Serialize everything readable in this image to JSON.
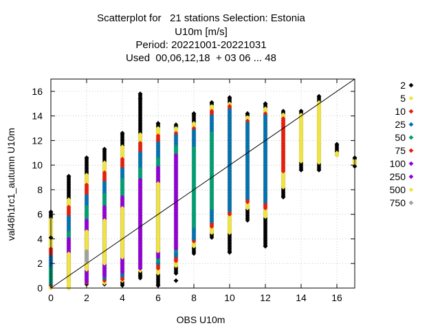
{
  "title_lines": [
    "Scatterplot for   21 stations Selection: Estonia",
    "U10m [m/s]",
    "Period: 20221001-20221031",
    "Used  00,06,12,18  + 03 06 ... 48"
  ],
  "chart_data": {
    "type": "scatter",
    "xlabel": "OBS U10m",
    "ylabel": "val46h1rc1_autumn U10m",
    "xlim": [
      0,
      17
    ],
    "ylim": [
      0,
      17
    ],
    "xticks": [
      0,
      2,
      4,
      6,
      8,
      10,
      12,
      14,
      16
    ],
    "yticks": [
      0,
      2,
      4,
      6,
      8,
      10,
      12,
      14,
      16
    ],
    "diagonal_line": true,
    "grid": true,
    "legend_position": "right",
    "legend": [
      {
        "label": "2",
        "color": "#000000"
      },
      {
        "label": "5",
        "color": "#f0e442"
      },
      {
        "label": "10",
        "color": "#e51e10"
      },
      {
        "label": "25",
        "color": "#0072b2"
      },
      {
        "label": "50",
        "color": "#009e73"
      },
      {
        "label": "75",
        "color": "#e51e10"
      },
      {
        "label": "100",
        "color": "#9400d3"
      },
      {
        "label": "250",
        "color": "#9400d3"
      },
      {
        "label": "500",
        "color": "#f0e442"
      },
      {
        "label": "750",
        "color": "#a0a0a0"
      }
    ],
    "columns": [
      {
        "x": 0,
        "bands": [
          [
            "#000000",
            0,
            6.2
          ],
          [
            "#f0e442",
            0,
            5.6
          ],
          [
            "#e51e10",
            0.2,
            3.2
          ],
          [
            "#0072b2",
            0.3,
            2.6
          ],
          [
            "#009e73",
            0.4,
            1.6
          ]
        ]
      },
      {
        "x": 1,
        "bands": [
          [
            "#000000",
            0,
            9.1
          ],
          [
            "#f0e442",
            0,
            7.2
          ],
          [
            "#e51e10",
            0.5,
            6.6
          ],
          [
            "#0072b2",
            0.5,
            5.8
          ],
          [
            "#009e73",
            0.8,
            4.5
          ],
          [
            "#9400d3",
            1.0,
            4.0
          ],
          [
            "#f0e442",
            0.3,
            2.8
          ]
        ]
      },
      {
        "x": 2,
        "bands": [
          [
            "#000000",
            0.3,
            10.6
          ],
          [
            "#f0e442",
            0.4,
            9.2
          ],
          [
            "#e51e10",
            0.4,
            8.4
          ],
          [
            "#0072b2",
            0.5,
            7.5
          ],
          [
            "#009e73",
            0.6,
            6.6
          ],
          [
            "#9400d3",
            0.5,
            5.5
          ],
          [
            "#f0e442",
            1.5,
            4.6
          ],
          [
            "#a0a0a0",
            2.2,
            3.0
          ]
        ]
      },
      {
        "x": 3,
        "bands": [
          [
            "#000000",
            0.3,
            11.3
          ],
          [
            "#f0e442",
            0.4,
            10.2
          ],
          [
            "#e51e10",
            0.6,
            9.4
          ],
          [
            "#0072b2",
            0.8,
            8.6
          ],
          [
            "#009e73",
            1.0,
            7.6
          ],
          [
            "#9400d3",
            1.0,
            6.6
          ],
          [
            "#f0e442",
            2.0,
            5.5
          ]
        ]
      },
      {
        "x": 4,
        "bands": [
          [
            "#000000",
            0.2,
            12.6
          ],
          [
            "#f0e442",
            0.6,
            11.5
          ],
          [
            "#e51e10",
            0.7,
            10.5
          ],
          [
            "#0072b2",
            1.0,
            9.7
          ],
          [
            "#009e73",
            1.3,
            8.8
          ],
          [
            "#9400d3",
            1.3,
            7.4
          ],
          [
            "#f0e442",
            2.5,
            6.5
          ]
        ]
      },
      {
        "x": 5,
        "bands": [
          [
            "#000000",
            0.8,
            15.8
          ],
          [
            "#f0e442",
            1.4,
            12.5
          ],
          [
            "#e51e10",
            1.6,
            11.8
          ],
          [
            "#0072b2",
            1.6,
            11.0
          ],
          [
            "#009e73",
            1.8,
            9.7
          ],
          [
            "#9400d3",
            1.6,
            8.8
          ]
        ]
      },
      {
        "x": 6,
        "bands": [
          [
            "#000000",
            0.2,
            13.4
          ],
          [
            "#f0e442",
            1.2,
            13.0
          ],
          [
            "#e51e10",
            1.6,
            12.4
          ],
          [
            "#0072b2",
            2.0,
            11.8
          ],
          [
            "#009e73",
            2.2,
            10.5
          ],
          [
            "#9400d3",
            2.5,
            9.8
          ],
          [
            "#f0e442",
            3.0,
            8.5
          ]
        ]
      },
      {
        "x": 7,
        "bands": [
          [
            "#000000",
            1.2,
            13.3
          ],
          [
            "#f0e442",
            1.8,
            13.0
          ],
          [
            "#e51e10",
            2.2,
            12.6
          ],
          [
            "#0072b2",
            2.6,
            12.4
          ],
          [
            "#009e73",
            3.0,
            11.5
          ],
          [
            "#9400d3",
            3.2,
            10.8
          ]
        ]
      },
      {
        "x": 8,
        "bands": [
          [
            "#000000",
            2.8,
            14.2
          ],
          [
            "#f0e442",
            3.4,
            13.4
          ],
          [
            "#e51e10",
            3.8,
            13.0
          ],
          [
            "#0072b2",
            4.0,
            12.8
          ],
          [
            "#009e73",
            5.0,
            11.4
          ]
        ]
      },
      {
        "x": 9,
        "bands": [
          [
            "#000000",
            4.1,
            15.1
          ],
          [
            "#f0e442",
            4.5,
            14.8
          ],
          [
            "#e51e10",
            5.0,
            14.4
          ],
          [
            "#0072b2",
            5.4,
            14.0
          ],
          [
            "#009e73",
            6.5,
            12.6
          ]
        ]
      },
      {
        "x": 10,
        "bands": [
          [
            "#000000",
            2.9,
            15.5
          ],
          [
            "#f0e442",
            4.5,
            15.0
          ],
          [
            "#e51e10",
            6.0,
            14.8
          ],
          [
            "#0072b2",
            6.3,
            14.5
          ]
        ]
      },
      {
        "x": 11,
        "bands": [
          [
            "#000000",
            5.5,
            14.2
          ],
          [
            "#f0e442",
            6.5,
            13.9
          ],
          [
            "#e51e10",
            7.0,
            13.6
          ],
          [
            "#0072b2",
            7.3,
            13.4
          ]
        ]
      },
      {
        "x": 12,
        "bands": [
          [
            "#000000",
            3.4,
            15.0
          ],
          [
            "#f0e442",
            5.8,
            14.6
          ],
          [
            "#e51e10",
            6.5,
            14.2
          ],
          [
            "#0072b2",
            7.0,
            14.0
          ]
        ]
      },
      {
        "x": 13,
        "bands": [
          [
            "#000000",
            7.4,
            14.4
          ],
          [
            "#f0e442",
            8.2,
            14.1
          ],
          [
            "#e51e10",
            9.5,
            13.8
          ]
        ]
      },
      {
        "x": 14,
        "bands": [
          [
            "#000000",
            9.6,
            14.4
          ],
          [
            "#f0e442",
            10.3,
            14.1
          ]
        ]
      },
      {
        "x": 15,
        "bands": [
          [
            "#000000",
            9.6,
            15.6
          ],
          [
            "#f0e442",
            10.2,
            15.1
          ]
        ]
      },
      {
        "x": 16,
        "bands": [
          [
            "#000000",
            10.8,
            11.7
          ],
          [
            "#f0e442",
            10.8,
            11.0
          ]
        ]
      },
      {
        "x": 17,
        "bands": [
          [
            "#000000",
            9.9,
            10.6
          ],
          [
            "#f0e442",
            10.0,
            10.4
          ]
        ]
      }
    ],
    "outliers": [
      {
        "x": 0,
        "y": 6.2
      },
      {
        "x": 0,
        "y": 4.1
      },
      {
        "x": 1,
        "y": 9.1
      },
      {
        "x": 2,
        "y": 10.6
      },
      {
        "x": 3,
        "y": 11.3
      },
      {
        "x": 4,
        "y": 12.6
      },
      {
        "x": 5,
        "y": 15.8
      },
      {
        "x": 5,
        "y": 15.4
      },
      {
        "x": 5,
        "y": 1.0
      },
      {
        "x": 6,
        "y": 0.2
      },
      {
        "x": 6,
        "y": 13.4
      },
      {
        "x": 7,
        "y": 1.2
      },
      {
        "x": 7,
        "y": 0.6
      },
      {
        "x": 8,
        "y": 14.2
      },
      {
        "x": 9,
        "y": 15.1
      },
      {
        "x": 10,
        "y": 15.5
      },
      {
        "x": 10,
        "y": 2.9
      },
      {
        "x": 11,
        "y": 14.2
      },
      {
        "x": 12,
        "y": 15.0
      },
      {
        "x": 12,
        "y": 3.4
      },
      {
        "x": 13,
        "y": 7.4
      },
      {
        "x": 14,
        "y": 14.4
      },
      {
        "x": 14,
        "y": 9.6
      },
      {
        "x": 15,
        "y": 15.6
      },
      {
        "x": 15,
        "y": 9.6
      },
      {
        "x": 16,
        "y": 11.7
      },
      {
        "x": 17,
        "y": 10.6
      },
      {
        "x": 17,
        "y": 9.9
      }
    ]
  }
}
